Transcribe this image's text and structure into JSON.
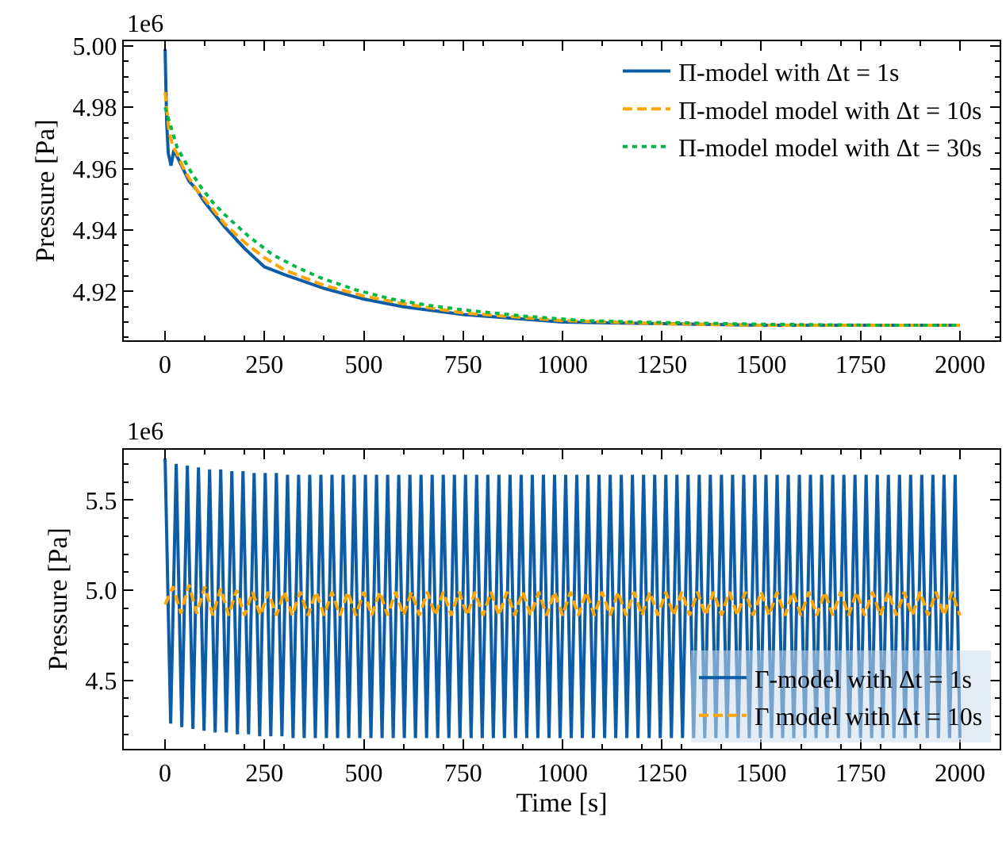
{
  "chart_data": [
    {
      "type": "line",
      "ylabel": "Pressure [Pa]",
      "annotations": [
        "1e6"
      ],
      "xlim": [
        -104,
        2100
      ],
      "xticks": [
        0,
        250,
        500,
        750,
        1000,
        1250,
        1500,
        1750,
        2000
      ],
      "ylim": [
        4.904,
        5.0015
      ],
      "yticks": [
        4.92,
        4.94,
        4.96,
        4.98,
        {
          "value": 5.0,
          "label": "5.00"
        }
      ],
      "legend": "top right",
      "series": [
        {
          "name": "Π-model with Δt = 1s",
          "color": "#0c5da5",
          "line_style": "solid",
          "x": [
            0,
            4,
            8,
            15,
            22,
            30,
            45,
            60,
            80,
            100,
            150,
            200,
            250,
            300,
            400,
            500,
            600,
            750,
            1000,
            1250,
            1500,
            1750,
            2000
          ],
          "values": [
            4.999,
            4.975,
            4.965,
            4.961,
            4.966,
            4.964,
            4.96,
            4.956,
            4.953,
            4.949,
            4.941,
            4.934,
            4.928,
            4.9255,
            4.921,
            4.9175,
            4.915,
            4.9125,
            4.91,
            4.9095,
            4.909,
            4.909,
            4.909
          ]
        },
        {
          "name": "Π-model model with Δt = 10s",
          "color": "#ffa500",
          "line_style": "dashed",
          "x": [
            0,
            10,
            20,
            30,
            40,
            50,
            60,
            70,
            80,
            100,
            150,
            200,
            250,
            300,
            400,
            500,
            600,
            750,
            1000,
            1250,
            1500,
            1750,
            2000
          ],
          "values": [
            4.985,
            4.972,
            4.967,
            4.965,
            4.962,
            4.959,
            4.957,
            4.955,
            4.953,
            4.95,
            4.942,
            4.936,
            4.931,
            4.927,
            4.922,
            4.9185,
            4.916,
            4.913,
            4.9105,
            4.9095,
            4.909,
            4.909,
            4.909
          ]
        },
        {
          "name": "Π-model model with Δt = 30s",
          "color": "#00b945",
          "line_style": "dotted",
          "x": [
            0,
            30,
            60,
            90,
            120,
            150,
            210,
            270,
            330,
            390,
            480,
            570,
            660,
            750,
            900,
            1050,
            1200,
            1500,
            1800,
            2000
          ],
          "values": [
            4.98,
            4.967,
            4.96,
            4.954,
            4.949,
            4.945,
            4.938,
            4.932,
            4.928,
            4.9245,
            4.9205,
            4.9175,
            4.9155,
            4.914,
            4.912,
            4.9105,
            4.91,
            4.9093,
            4.909,
            4.909
          ]
        }
      ]
    },
    {
      "type": "line",
      "xlabel": "Time [s]",
      "ylabel": "Pressure [Pa]",
      "annotations": [
        "1e6"
      ],
      "xlim": [
        -104,
        2100
      ],
      "xticks": [
        0,
        250,
        500,
        750,
        1000,
        1250,
        1500,
        1750,
        2000
      ],
      "ylim": [
        4.12,
        5.78
      ],
      "yticks": [
        4.5,
        {
          "value": 5.0,
          "label": "5.0"
        },
        5.5
      ],
      "legend": "bottom right",
      "series": [
        {
          "name": "Γ-model with Δt = 1s",
          "color": "#0c5da5",
          "line_style": "solid",
          "x": [
            0,
            14,
            28,
            42,
            56,
            70,
            84,
            98,
            112,
            126,
            140,
            154,
            168,
            182,
            196,
            210,
            224,
            238,
            252,
            266,
            280,
            294,
            308,
            322,
            336,
            350,
            364,
            378,
            392,
            406,
            420,
            434,
            448,
            462,
            476,
            490,
            504,
            518,
            532,
            546,
            560,
            574,
            588,
            602,
            616,
            630,
            644,
            658,
            672,
            686,
            700,
            714,
            728,
            742,
            756,
            770,
            784,
            798,
            812,
            826,
            840,
            854,
            868,
            882,
            896,
            910,
            924,
            938,
            952,
            966,
            980,
            994,
            1008,
            1022,
            1036,
            1050,
            1064,
            1078,
            1092,
            1106,
            1120,
            1134,
            1148,
            1162,
            1176,
            1190,
            1204,
            1218,
            1232,
            1246,
            1260,
            1274,
            1288,
            1302,
            1316,
            1330,
            1344,
            1358,
            1372,
            1386,
            1400,
            1414,
            1428,
            1442,
            1456,
            1470,
            1484,
            1498,
            1512,
            1526,
            1540,
            1554,
            1568,
            1582,
            1596,
            1610,
            1624,
            1638,
            1652,
            1666,
            1680,
            1694,
            1708,
            1722,
            1736,
            1750,
            1764,
            1778,
            1792,
            1806,
            1820,
            1834,
            1848,
            1862,
            1876,
            1890,
            1904,
            1918,
            1932,
            1946,
            1960,
            1974,
            1988,
            2000
          ],
          "values": [
            5.73,
            4.26,
            5.7,
            4.24,
            5.69,
            4.23,
            5.68,
            4.22,
            5.67,
            4.21,
            5.67,
            4.21,
            5.66,
            4.2,
            5.66,
            4.2,
            5.65,
            4.19,
            5.65,
            4.19,
            5.65,
            4.19,
            5.64,
            4.18,
            5.64,
            4.18,
            5.64,
            4.18,
            5.64,
            4.18,
            5.64,
            4.18,
            5.64,
            4.18,
            5.64,
            4.18,
            5.64,
            4.18,
            5.64,
            4.18,
            5.64,
            4.18,
            5.64,
            4.18,
            5.64,
            4.18,
            5.64,
            4.18,
            5.64,
            4.18,
            5.64,
            4.18,
            5.64,
            4.18,
            5.64,
            4.18,
            5.64,
            4.18,
            5.64,
            4.18,
            5.64,
            4.18,
            5.64,
            4.18,
            5.64,
            4.18,
            5.64,
            4.18,
            5.64,
            4.18,
            5.64,
            4.18,
            5.64,
            4.18,
            5.64,
            4.18,
            5.64,
            4.18,
            5.64,
            4.18,
            5.64,
            4.18,
            5.64,
            4.18,
            5.64,
            4.18,
            5.64,
            4.18,
            5.64,
            4.18,
            5.64,
            4.18,
            5.64,
            4.18,
            5.64,
            4.18,
            5.64,
            4.18,
            5.64,
            4.18,
            5.64,
            4.18,
            5.64,
            4.18,
            5.64,
            4.18,
            5.64,
            4.18,
            5.64,
            4.18,
            5.64,
            4.18,
            5.64,
            4.18,
            5.64,
            4.18,
            5.64,
            4.18,
            5.64,
            4.18,
            5.64,
            4.18,
            5.64,
            4.18,
            5.64,
            4.18,
            5.64,
            4.18,
            5.64,
            4.18,
            5.64,
            4.18,
            5.64,
            4.18,
            5.64,
            4.18,
            5.64,
            4.18,
            5.64,
            4.18,
            5.64,
            4.18,
            5.64,
            4.18
          ]
        },
        {
          "name": "Γ model with Δt = 10s",
          "color": "#ffa500",
          "line_style": "dashed",
          "x": [
            0,
            20,
            40,
            60,
            80,
            100,
            120,
            140,
            160,
            180,
            200,
            220,
            240,
            260,
            280,
            300,
            320,
            340,
            360,
            380,
            400,
            420,
            440,
            460,
            480,
            500,
            520,
            540,
            560,
            580,
            600,
            620,
            640,
            660,
            680,
            700,
            720,
            740,
            760,
            780,
            800,
            820,
            840,
            860,
            880,
            900,
            920,
            940,
            960,
            980,
            1000,
            1020,
            1040,
            1060,
            1080,
            1100,
            1120,
            1140,
            1160,
            1180,
            1200,
            1220,
            1240,
            1260,
            1280,
            1300,
            1320,
            1340,
            1360,
            1380,
            1400,
            1420,
            1440,
            1460,
            1480,
            1500,
            1520,
            1540,
            1560,
            1580,
            1600,
            1620,
            1640,
            1660,
            1680,
            1700,
            1720,
            1740,
            1760,
            1780,
            1800,
            1820,
            1840,
            1860,
            1880,
            1900,
            1920,
            1940,
            1960,
            1980,
            2000
          ],
          "values": [
            4.92,
            5.02,
            4.87,
            5.03,
            4.87,
            5.02,
            4.86,
            5.01,
            4.86,
            5.0,
            4.86,
            4.99,
            4.86,
            4.99,
            4.86,
            4.99,
            4.86,
            4.99,
            4.86,
            4.99,
            4.86,
            4.99,
            4.86,
            4.99,
            4.86,
            4.99,
            4.86,
            4.99,
            4.86,
            4.99,
            4.86,
            4.99,
            4.86,
            4.99,
            4.86,
            4.99,
            4.86,
            4.99,
            4.86,
            4.99,
            4.86,
            4.99,
            4.86,
            4.99,
            4.86,
            4.99,
            4.86,
            4.99,
            4.86,
            4.99,
            4.86,
            4.99,
            4.86,
            4.99,
            4.86,
            4.99,
            4.86,
            4.99,
            4.86,
            4.99,
            4.86,
            4.99,
            4.86,
            4.99,
            4.86,
            4.99,
            4.86,
            4.99,
            4.86,
            4.99,
            4.86,
            4.99,
            4.86,
            4.99,
            4.86,
            4.99,
            4.86,
            4.99,
            4.86,
            4.99,
            4.86,
            4.99,
            4.86,
            4.99,
            4.86,
            4.99,
            4.86,
            4.99,
            4.86,
            4.99,
            4.86,
            4.99,
            4.86,
            4.99,
            4.86,
            4.99,
            4.86,
            4.99,
            4.86,
            4.99,
            4.86
          ]
        }
      ]
    }
  ]
}
